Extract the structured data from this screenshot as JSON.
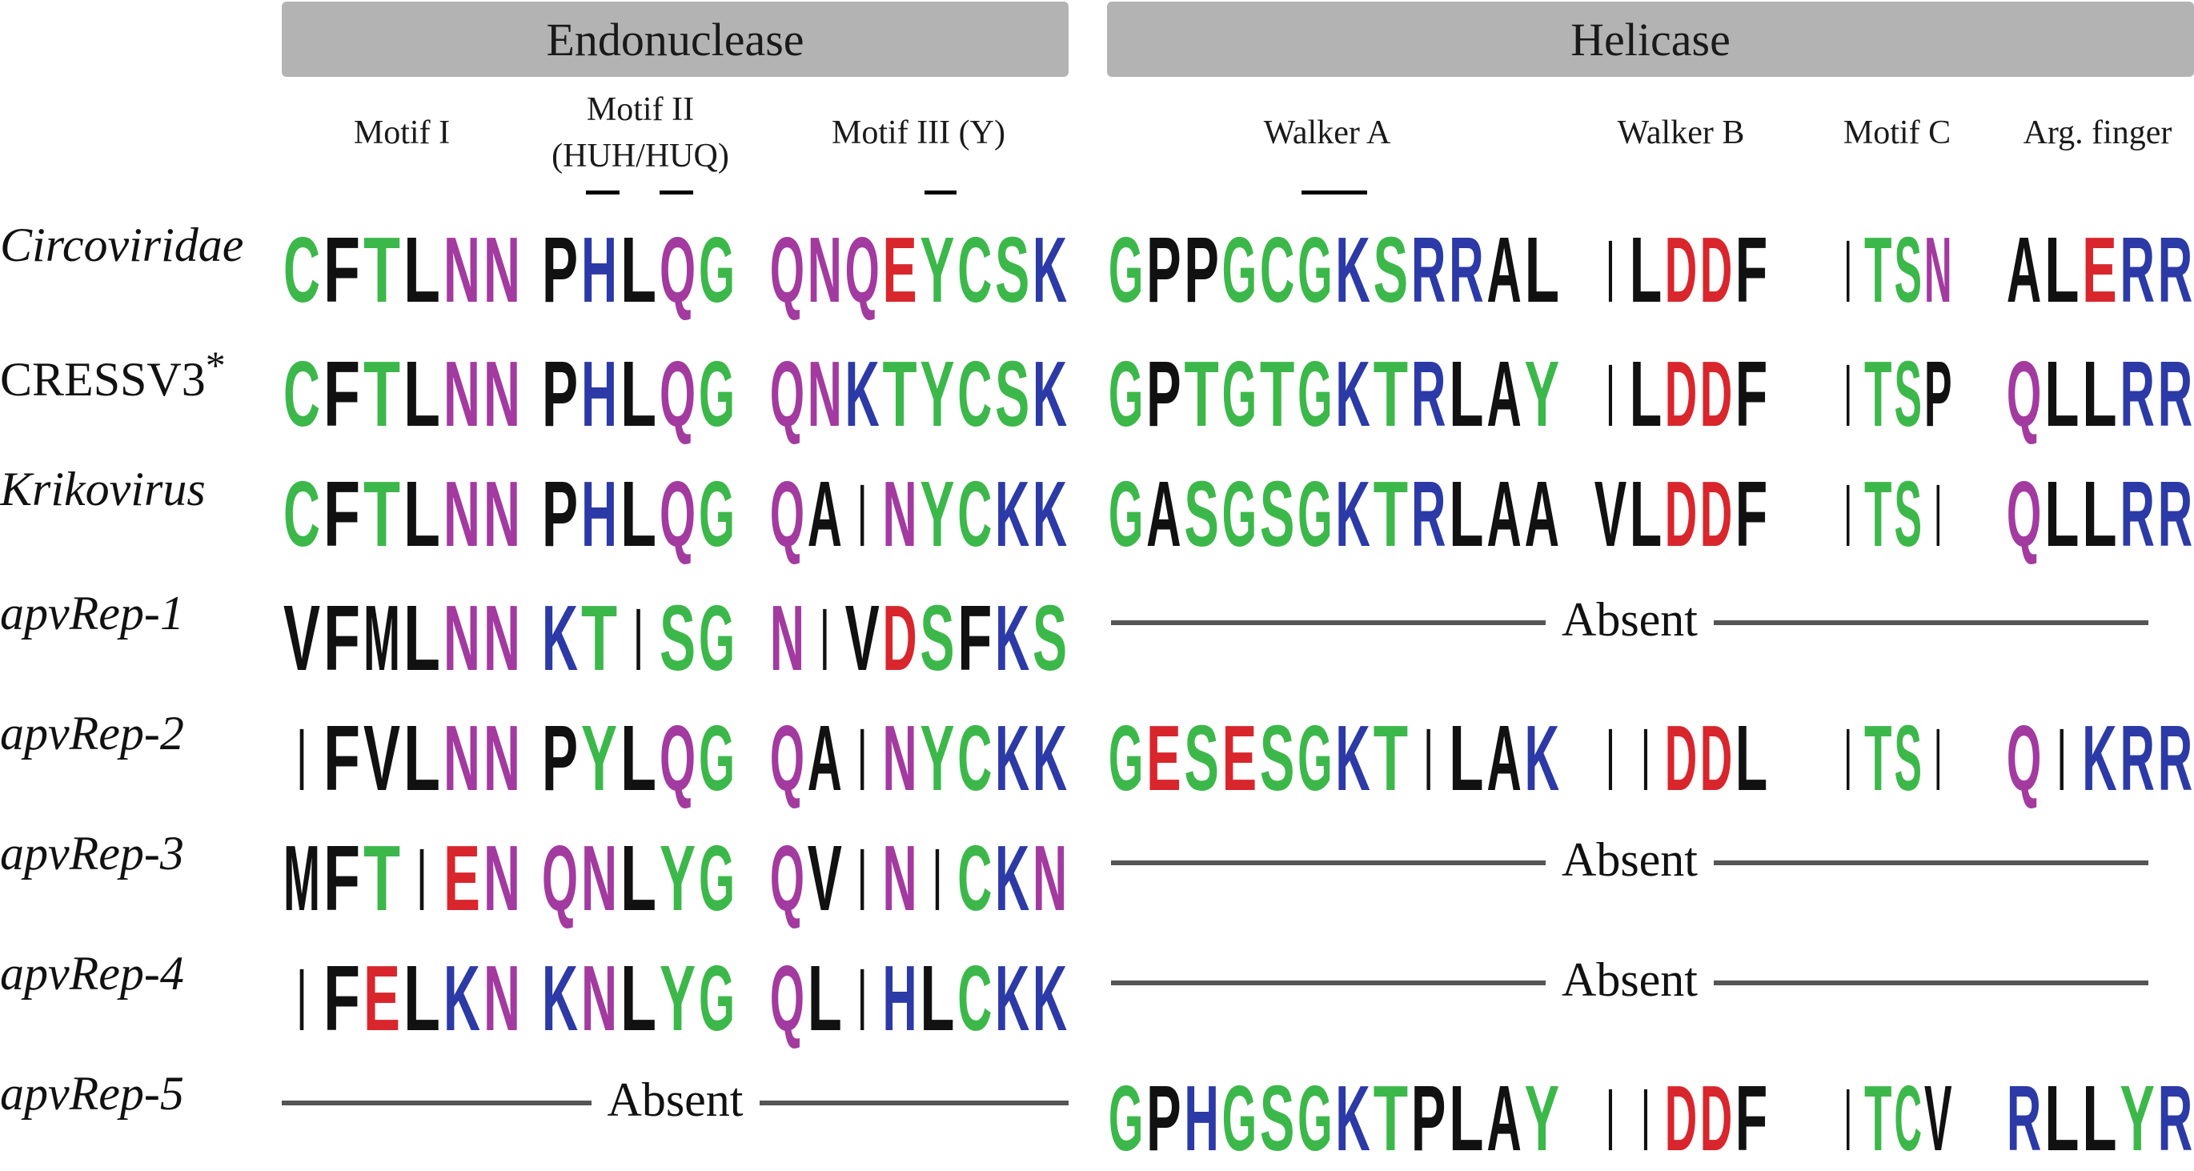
{
  "domains": {
    "endonuclease": "Endonuclease",
    "helicase": "Helicase"
  },
  "motif_headers": {
    "motif1": "Motif I",
    "motif2_line1": "Motif II",
    "motif2_line2": "(HUH/HUQ)",
    "motif3": "Motif III (Y)",
    "walkerA": "Walker A",
    "walkerB": "Walker B",
    "motifC": "Motif C",
    "argfinger": "Arg. finger"
  },
  "absent_label": "Absent",
  "colors": {
    "green": "#3cb84a",
    "blue": "#2b3aa6",
    "red": "#d8262c",
    "magenta": "#a33aa0",
    "black": "#111111",
    "band": "#b3b3b3",
    "absent_line": "#555555"
  },
  "rows": [
    {
      "label": "Circoviridae",
      "italic": true,
      "asterisk": "",
      "motifs": {
        "m1": "CFTLNN",
        "m2": "PHLQG",
        "m3": "QNQEYCSK",
        "wa": "GPPGCGKSRRAL",
        "wb": "ILDDF",
        "mc": "ITSN",
        "arg": "ALERR"
      }
    },
    {
      "label": "CRESSV3",
      "italic": false,
      "asterisk": "*",
      "motifs": {
        "m1": "CFTLNN",
        "m2": "PHLQG",
        "m3": "QNKTYCSK",
        "wa": "GPTGTGKTRLAY",
        "wb": "ILDDF",
        "mc": "ITSP",
        "arg": "QLLRR"
      }
    },
    {
      "label": "Krikovirus",
      "italic": true,
      "asterisk": "",
      "motifs": {
        "m1": "CFTLNN",
        "m2": "PHLQG",
        "m3": "QAINYCKK",
        "wa": "GASGSGKTRLAA",
        "wb": "VLDDF",
        "mc": "ITSI",
        "arg": "QLLRR"
      }
    },
    {
      "label": "apvRep-1",
      "italic": true,
      "asterisk": "",
      "motifs": {
        "m1": "VFMLNN",
        "m2": "KTISG",
        "m3": "NIVDSFKS"
      },
      "helicase_absent": true
    },
    {
      "label": "apvRep-2",
      "italic": true,
      "asterisk": "",
      "motifs": {
        "m1": "IFVLNN",
        "m2": "PYLQG",
        "m3": "QAINYCKK",
        "wa": "GESESGKTILAK",
        "wb": "IIDDL",
        "mc": "ITSI",
        "arg": "QIKRR"
      }
    },
    {
      "label": "apvRep-3",
      "italic": true,
      "asterisk": "",
      "motifs": {
        "m1": "MFTIEN",
        "m2": "QNLYG",
        "m3": "QVINICKN"
      },
      "helicase_absent": true
    },
    {
      "label": "apvRep-4",
      "italic": true,
      "asterisk": "",
      "motifs": {
        "m1": "IFELKN",
        "m2": "KNLYG",
        "m3": "QLIHLCKK"
      },
      "helicase_absent": true
    },
    {
      "label": "apvRep-5",
      "italic": true,
      "asterisk": "",
      "endo_absent": true,
      "motifs": {
        "wa": "GPHGSGKTPLAY",
        "wb": "IIDDF",
        "mc": "ITCV",
        "arg": "RLLYR"
      }
    }
  ]
}
